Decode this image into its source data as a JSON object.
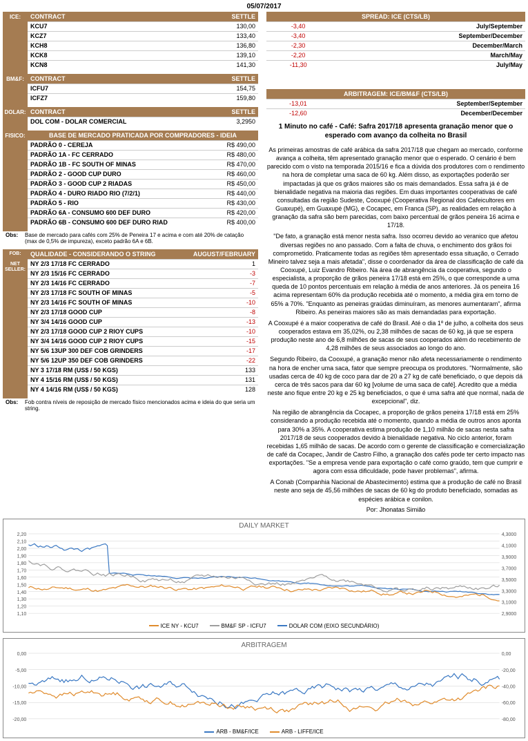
{
  "date": "05/07/2017",
  "ice": {
    "label": "ICE:",
    "headers": [
      "CONTRACT",
      "SETTLE"
    ],
    "rows": [
      [
        "KCU7",
        "130,00"
      ],
      [
        "KCZ7",
        "133,40"
      ],
      [
        "KCH8",
        "136,80"
      ],
      [
        "KCK8",
        "139,10"
      ],
      [
        "KCN8",
        "141,30"
      ]
    ]
  },
  "spread": {
    "title": "SPREAD: ICE (CTS/LB)",
    "rows": [
      [
        "-3,40",
        "July/September"
      ],
      [
        "-3,40",
        "September/December"
      ],
      [
        "-2,30",
        "December/March"
      ],
      [
        "-2,20",
        "March/May"
      ],
      [
        "-11,30",
        "July/May"
      ]
    ]
  },
  "bmf": {
    "label": "BM&F:",
    "headers": [
      "CONTRACT",
      "SETTLE"
    ],
    "rows": [
      [
        "ICFU7",
        "154,75"
      ],
      [
        "ICFZ7",
        "159,80"
      ]
    ]
  },
  "arbitragem": {
    "title": "ARBITRAGEM: ICE/BM&F (CTS/LB)",
    "rows": [
      [
        "-13,01",
        "September/September"
      ],
      [
        "-12,60",
        "December/December"
      ]
    ]
  },
  "dolar": {
    "label": "DOLAR:",
    "headers": [
      "CONTRACT",
      "SETTLE"
    ],
    "rows": [
      [
        "DOL COM - DOLAR COMERCIAL",
        "3,2950"
      ]
    ]
  },
  "fisico": {
    "label": "FISICO:",
    "title": "BASE DE MERCADO PRATICADA POR COMPRADORES - IDEIA",
    "rows": [
      [
        "PADRÃO 0 - CEREJA",
        "R$ 490,00"
      ],
      [
        "PADRÃO 1A - FC CERRADO",
        "R$ 480,00"
      ],
      [
        "PADRÃO 1B - FC SOUTH OF MINAS",
        "R$ 470,00"
      ],
      [
        "PADRÃO 2 - GOOD CUP DURO",
        "R$ 460,00"
      ],
      [
        "PADRÃO 3 - GOOD CUP 2 RIADAS",
        "R$ 450,00"
      ],
      [
        "PADRÃO 4 - DURO RIADO RIO (7/2/1)",
        "R$ 440,00"
      ],
      [
        "PADRÃO 5 - RIO",
        "R$ 430,00"
      ],
      [
        "PADRÃO 6A - CONSUMO 600 DEF DURO",
        "R$ 420,00"
      ],
      [
        "PADRÃO 6B - CONSUMO 600 DEF DURO RIAD",
        "R$ 400,00"
      ]
    ],
    "obs_label": "Obs:",
    "obs": "Base de mercado para cafés com 25% de Peneira 17 e acima e com até 20% de catação (max de 0,5% de impureza), exceto padrão 6A e 6B."
  },
  "fob": {
    "label": "FOB:",
    "net_label": "NET SELLER:",
    "headers": [
      "QUALIDADE - CONSIDERANDO O STRING",
      "AUGUST/FEBRUARY"
    ],
    "rows": [
      [
        "NY 2/3 17/18 FC CERRADO",
        "1"
      ],
      [
        "NY 2/3 15/16 FC CERRADO",
        "-3"
      ],
      [
        "NY 2/3 14/16 FC CERRADO",
        "-7"
      ],
      [
        "NY 2/3 17/18 FC SOUTH OF MINAS",
        "-5"
      ],
      [
        "NY 2/3 14/16 FC SOUTH OF MINAS",
        "-10"
      ],
      [
        "NY 2/3 17/18 GOOD CUP",
        "-8"
      ],
      [
        "NY 3/4 14/16 GOOD CUP",
        "-13"
      ],
      [
        "NY 2/3 17/18 GOOD CUP 2 RIOY CUPS",
        "-10"
      ],
      [
        "NY 3/4 14/16 GOOD CUP 2 RIOY CUPS",
        "-15"
      ],
      [
        "NY 5/6 13UP 300 DEF COB GRINDERS",
        "-17"
      ],
      [
        "NY 5/6 12UP 350 DEF COB GRINDERS",
        "-22"
      ],
      [
        "NY 3 17/18 RM (US$ / 50 KGS)",
        "133"
      ],
      [
        "NY 4 15/16 RM (US$ / 50 KGS)",
        "131"
      ],
      [
        "NY 4 14/16 RM (US$ / 50 KGS)",
        "128"
      ]
    ],
    "obs_label": "Obs:",
    "obs": "Fob contra níveis de reposição de mercado físico mencionados acima e ideia do que seria um string."
  },
  "article": {
    "title": "1 Minuto no café - Café: Safra 2017/18 apresenta granação menor que o esperado com avanço da colheita no Brasil",
    "paragraphs": [
      "As primeiras amostras de café arábica da safra 2017/18 que chegam ao mercado, conforme avança a colheita, têm apresentado granação menor que o esperado. O cenário é bem parecido com o visto na temporada 2015/16 e fica a dúvida dos produtores com o rendimento na hora de completar uma saca de 60 kg. Além disso, as exportações poderão ser impactadas já que os grãos maiores são os mais demandados. Essa safra já é de bienalidade negativa na maioria das regiões. Em duas importantes cooperativas de café consultadas da região Sudeste, Cooxupé (Cooperativa Regional dos Cafeicultores em Guaxupé), em Guaxupé (MG), e Cocapec, em Franca (SP), as realidades em relação à granação da safra são bem parecidas, com baixo percentual de grãos peneira 16 acima e 17/18.",
      "\"De fato, a granação está menor nesta safra. Isso ocorreu devido ao veranico que afetou diversas regiões no ano passado. Com a falta de chuva, o enchimento dos grãos foi comprometido. Praticamente todas as regiões têm apresentado essa situação, o Cerrado Mineiro talvez seja a mais afetada\", disse o coordenador da área de classificação de café da Cooxupé, Luiz Evandro Ribeiro. Na área de abrangência da cooperativa, segundo o especialista, a proporção de grãos peneira 17/18 está em 25%, o que corresponde a uma queda de 10 pontos percentuais em relação à média de anos anteriores. Já os peneira 16 acima representam 60% da produção recebida até o momento, a média gira em torno de 65% a 70%. \"Enquanto as peneiras graúdas diminuíram, as menores aumentaram\", afirma Ribeiro. As peneiras maiores são as mais demandadas para exportação.",
      "A Cooxupé é a maior cooperativa de café do Brasil. Até o dia 1º de julho, a colheita dos seus cooperados estava em 35,02%, ou 2,38 milhões de sacas de 60 kg, já que se espera produção neste ano de 6,8 milhões de sacas de seus cooperados além do recebimento de 4,28 milhões de seus associados ao longo do ano.",
      "Segundo Ribeiro, da Cooxupé, a granação menor não afeta necessariamente o rendimento na hora de encher uma saca, fator que sempre preocupa os produtores. \"Normalmente, são usadas cerca de 40 kg de coco para dar de 20 a 27 kg de café beneficiado, o que depois dá cerca de três sacos para dar 60 kg [volume de uma saca de café]. Acredito que a média neste ano fique entre 20 kg e 25 kg beneficiados, o que é uma safra até que normal, nada de excepcional\", diz.",
      "Na região de abrangência da Cocapec, a proporção de grãos peneira 17/18 está em 25% considerando a produção recebida até o momento, quando a média de outros anos aponta para 30% a 35%. A cooperativa estima produção de 1,10 milhão de sacas nesta safra 2017/18 de seus cooperados devido à bienalidade negativa. No ciclo anterior, foram recebidas 1,65 milhão de sacas. De acordo com o gerente de classificação e comercialização de café da Cocapec, Jandir de Castro Filho, a granação dos cafés pode ter certo impacto nas exportações. \"Se a empresa vende para exportação o café como graúdo, tem que cumprir e agora com essa dificuldade, pode haver problemas\", afirma.",
      "A Conab (Companhia Nacional de Abastecimento) estima que a produção de café no Brasil neste ano seja de 45,56 milhões de sacas de 60 kg do produto beneficiado, somadas as espécies arábica e conilon."
    ],
    "author": "Por: Jhonatas Simião"
  },
  "chart1": {
    "title": "DAILY MARKET",
    "y1_ticks": [
      "2,20",
      "2,10",
      "2,00",
      "1,90",
      "1,80",
      "1,70",
      "1,60",
      "1,50",
      "1,40",
      "1,30",
      "1,20",
      "1,10"
    ],
    "y2_ticks": [
      "4,3000",
      "4,1000",
      "3,9000",
      "3,7000",
      "3,5000",
      "3,3000",
      "3,1000",
      "2,9000"
    ],
    "series": [
      {
        "name": "ICE NY - KCU7",
        "color": "#e08b2c"
      },
      {
        "name": "BM&F SP - ICFU7",
        "color": "#9e9e9e"
      },
      {
        "name": "DOLAR COM (EIXO SECUNDÁRIO)",
        "color": "#3a78c3"
      }
    ],
    "colors": {
      "grid": "#d0d0d0",
      "axis": "#888"
    }
  },
  "chart2": {
    "title": "ARBITRAGEM",
    "y1_ticks": [
      "0,00",
      "-5,00",
      "-10,00",
      "-15,00",
      "-20,00"
    ],
    "y2_ticks": [
      "0,00",
      "-20,00",
      "-40,00",
      "-60,00",
      "-80,00"
    ],
    "series": [
      {
        "name": "ARB - BM&F/ICE",
        "color": "#3a78c3"
      },
      {
        "name": "ARB - LIFFE/ICE",
        "color": "#e08b2c"
      }
    ],
    "colors": {
      "grid": "#d0d0d0",
      "axis": "#888"
    }
  }
}
